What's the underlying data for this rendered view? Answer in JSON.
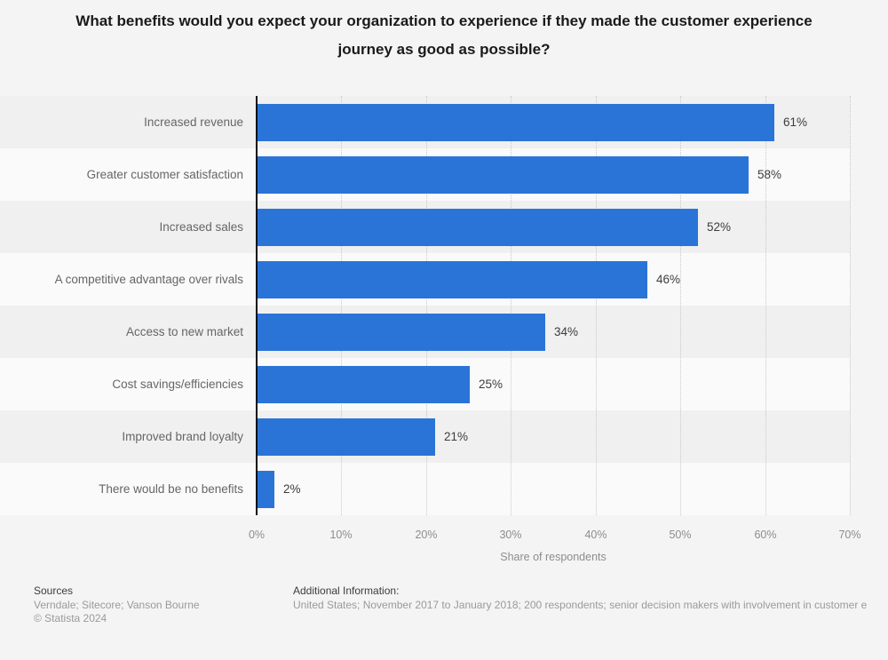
{
  "title": "What benefits would you expect your organization to experience if they made the customer experience journey as good as possible?",
  "chart_data": {
    "type": "bar",
    "orientation": "horizontal",
    "title": "What benefits would you expect your organization to experience if they made the customer experience journey as good as possible?",
    "categories": [
      "Increased revenue",
      "Greater customer satisfaction",
      "Increased sales",
      "A competitive advantage over rivals",
      "Access to new market",
      "Cost savings/efficiencies",
      "Improved brand loyalty",
      "There would be no benefits"
    ],
    "values": [
      61,
      58,
      52,
      46,
      34,
      25,
      21,
      2
    ],
    "value_labels": [
      "61%",
      "58%",
      "52%",
      "46%",
      "34%",
      "25%",
      "21%",
      "2%"
    ],
    "xlabel": "Share of respondents",
    "ylabel": "",
    "xlim": [
      0,
      70
    ],
    "x_ticks": [
      "0%",
      "10%",
      "20%",
      "30%",
      "40%",
      "50%",
      "60%",
      "70%"
    ],
    "grid": "vertical-dotted",
    "legend": "none",
    "bar_color": "#2a74d8",
    "band_colors": [
      "#f0f0f0",
      "#fafafa"
    ]
  },
  "footer": {
    "sources_label": "Sources",
    "sources_text": "Verndale; Sitecore; Vanson Bourne",
    "copyright": "© Statista 2024",
    "additional_label": "Additional Information:",
    "additional_text": "United States; November 2017 to January 2018; 200 respondents; senior decision makers with involvement in customer e"
  },
  "colors": {
    "bar": "#2a74d8",
    "page_background": "#f4f4f4",
    "band_odd": "#f0f0f0",
    "band_even": "#fafafa",
    "axis_line": "#0d0d0d",
    "gridline": "#c9c9c9",
    "title_text": "#1a1a1a",
    "category_text": "#666666",
    "value_text": "#3d3d3d",
    "tick_text": "#8d8d8d"
  }
}
